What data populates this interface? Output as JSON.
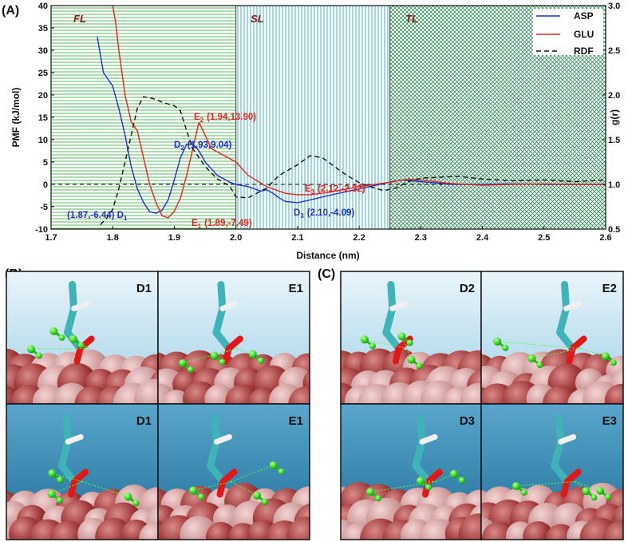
{
  "figure": {
    "panel_a_label": "(A)",
    "panel_b_label": "(B)",
    "panel_c_label": "(C)",
    "snapshot_labels_b": [
      "D1",
      "E1",
      "D1",
      "E1"
    ],
    "snapshot_labels_c": [
      "D2",
      "E2",
      "D3",
      "E3"
    ]
  },
  "colors": {
    "asp": "#1f2fc8",
    "glu": "#e0261f",
    "rdf": "#111111",
    "annotation_blue": "#1f2fc8",
    "annotation_red": "#e0261f",
    "region_label": "#8b1a1a",
    "fl_hatch": "#4caf50",
    "sl_hatch": "#2aa8b8",
    "tl_hatch": "#2e8b57"
  },
  "chart_data": {
    "type": "line",
    "xlabel": "Distance (nm)",
    "ylabel": "PMF (kJ/mol)",
    "y2label": "g(r)",
    "xlim": [
      1.7,
      2.6
    ],
    "ylim": [
      -10,
      40
    ],
    "y2lim": [
      0.5,
      3.0
    ],
    "xticks": [
      "1.7",
      "1.8",
      "1.9",
      "2.0",
      "2.1",
      "2.2",
      "2.3",
      "2.4",
      "2.5",
      "2.6"
    ],
    "yticks": [
      "-10",
      "-5",
      "0",
      "5",
      "10",
      "15",
      "20",
      "25",
      "30",
      "35",
      "40"
    ],
    "y2ticks": [
      "0.5",
      "1.0",
      "1.5",
      "2.0",
      "2.5",
      "3.0"
    ],
    "regions": [
      {
        "label": "FL",
        "x": [
          1.7,
          2.0
        ]
      },
      {
        "label": "SL",
        "x": [
          2.0,
          2.25
        ]
      },
      {
        "label": "TL",
        "x": [
          2.25,
          2.6
        ]
      }
    ],
    "legend": {
      "placement": "top-right",
      "entries": [
        "ASP",
        "GLU",
        "RDF"
      ]
    },
    "series": [
      {
        "name": "ASP",
        "axis": "left",
        "style": "solid",
        "x": [
          1.775,
          1.78,
          1.785,
          1.79,
          1.8,
          1.81,
          1.82,
          1.83,
          1.84,
          1.85,
          1.86,
          1.87,
          1.88,
          1.89,
          1.9,
          1.91,
          1.92,
          1.93,
          1.94,
          1.95,
          1.97,
          1.99,
          2.0,
          2.02,
          2.04,
          2.05,
          2.06,
          2.07,
          2.08,
          2.1,
          2.12,
          2.15,
          2.2,
          2.25,
          2.27,
          2.3,
          2.35,
          2.4,
          2.45,
          2.5,
          2.55,
          2.6
        ],
        "y": [
          33,
          29,
          25,
          24,
          22,
          17,
          11,
          4,
          -1,
          -4,
          -6.1,
          -6.44,
          -5.8,
          -3.5,
          1,
          6,
          9,
          9.04,
          7.5,
          5,
          2,
          0.5,
          0,
          -0.5,
          -1.5,
          -1.2,
          -2,
          -3,
          -3.8,
          -4.09,
          -3.5,
          -2.5,
          -1,
          0.5,
          1,
          0.6,
          0,
          0,
          0.1,
          0,
          0,
          0
        ]
      },
      {
        "name": "GLU",
        "axis": "left",
        "style": "solid",
        "x": [
          1.8,
          1.805,
          1.81,
          1.82,
          1.83,
          1.835,
          1.84,
          1.85,
          1.86,
          1.87,
          1.88,
          1.89,
          1.9,
          1.91,
          1.92,
          1.93,
          1.94,
          1.95,
          1.96,
          1.98,
          2.0,
          2.02,
          2.05,
          2.08,
          2.1,
          2.12,
          2.15,
          2.2,
          2.25,
          2.28,
          2.3,
          2.35,
          2.4,
          2.45,
          2.5,
          2.55,
          2.6
        ],
        "y": [
          40,
          36,
          30,
          20,
          14,
          13,
          12,
          6,
          0,
          -4,
          -7,
          -7.49,
          -6,
          -3,
          2,
          8,
          13.9,
          11,
          8,
          6.5,
          5,
          2,
          -0.5,
          -2,
          -2.3,
          -2.32,
          -1.8,
          -0.5,
          0.5,
          1.2,
          1,
          0.2,
          -0.2,
          0,
          0.1,
          0,
          0
        ]
      },
      {
        "name": "RDF",
        "axis": "right",
        "style": "dashed",
        "x": [
          1.78,
          1.79,
          1.8,
          1.81,
          1.82,
          1.83,
          1.84,
          1.85,
          1.86,
          1.87,
          1.88,
          1.89,
          1.9,
          1.91,
          1.92,
          1.93,
          1.95,
          1.97,
          1.99,
          2.0,
          2.02,
          2.05,
          2.07,
          2.1,
          2.12,
          2.14,
          2.16,
          2.18,
          2.2,
          2.22,
          2.24,
          2.26,
          2.28,
          2.3,
          2.33,
          2.36,
          2.4,
          2.45,
          2.5,
          2.55,
          2.6
        ],
        "y": [
          0.55,
          0.62,
          0.72,
          0.95,
          1.25,
          1.55,
          1.85,
          1.98,
          1.97,
          1.95,
          1.92,
          1.9,
          1.88,
          1.82,
          1.6,
          1.4,
          1.2,
          1.06,
          0.98,
          0.86,
          0.85,
          0.96,
          1.1,
          1.22,
          1.32,
          1.3,
          1.2,
          1.1,
          1.02,
          0.97,
          0.93,
          0.96,
          1.03,
          1.07,
          1.08,
          1.09,
          1.06,
          1.04,
          1.05,
          1.03,
          1.05
        ]
      }
    ],
    "annotations": [
      {
        "text": "(1.87,-6.44) D",
        "sub": "1",
        "color": "blue"
      },
      {
        "text": "D",
        "sub": "2",
        "after": "(1.93,9.04)",
        "color": "blue"
      },
      {
        "text": "D",
        "sub": "3",
        "after": "(2.10,-4.09)",
        "color": "blue"
      },
      {
        "text": "E",
        "sub": "2",
        "after": "(1.94,13.90)",
        "color": "red"
      },
      {
        "text": "E",
        "sub": "1",
        "after": "(1.89,-7.49)",
        "color": "red"
      },
      {
        "text": "E",
        "sub": "3",
        "after": "(2.12,-2.32)",
        "color": "red"
      }
    ]
  }
}
